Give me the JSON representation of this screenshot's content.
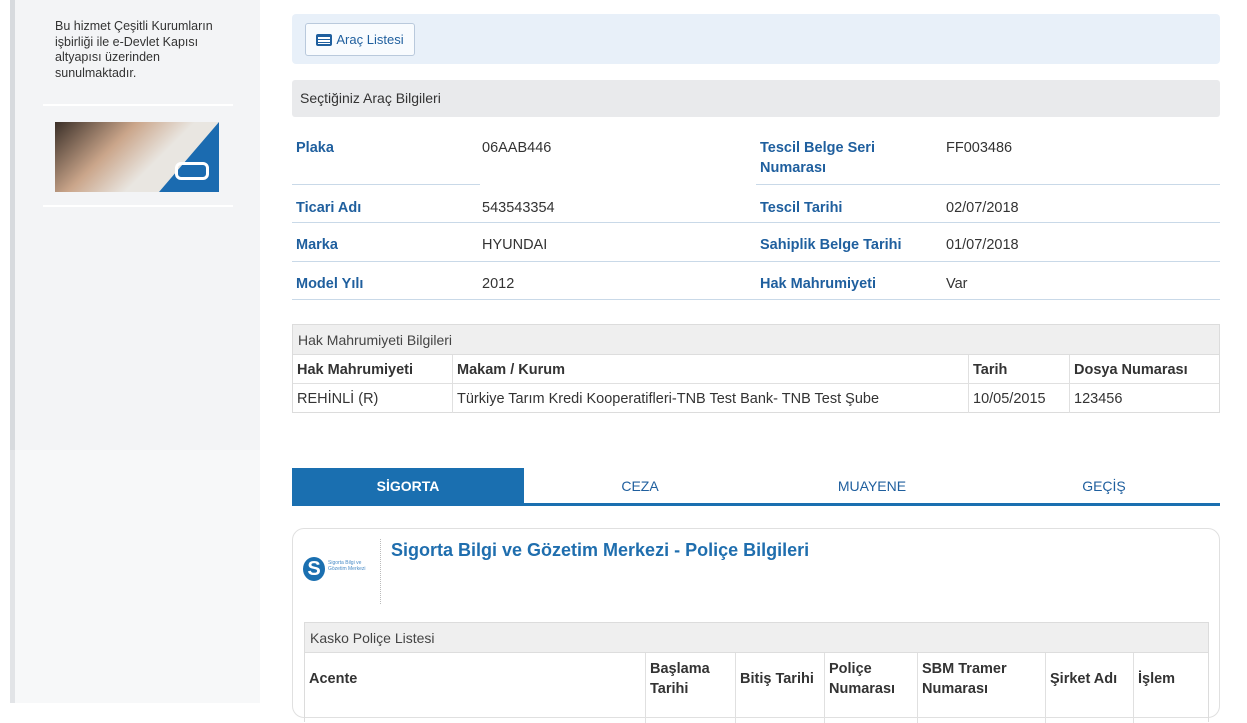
{
  "sidebar": {
    "info_text": "Bu hizmet Çeşitli Kurumların işbirliği ile e-Devlet Kapısı altyapısı üzerinden sunulmaktadır."
  },
  "toolbar": {
    "vehicle_list_label": "Araç Listesi",
    "icon": "list-icon"
  },
  "vehicle": {
    "section_title": "Seçtiğiniz Araç Bilgileri",
    "fields": [
      {
        "label": "Plaka",
        "value": "06AAB446"
      },
      {
        "label": "Tescil Belge Seri Numarası",
        "value": "FF003486"
      },
      {
        "label": "Ticari Adı",
        "value": "543543354"
      },
      {
        "label": "Tescil Tarihi",
        "value": "02/07/2018"
      },
      {
        "label": "Marka",
        "value": "HYUNDAI"
      },
      {
        "label": "Sahiplik Belge Tarihi",
        "value": "01/07/2018"
      },
      {
        "label": "Model Yılı",
        "value": "2012"
      },
      {
        "label": "Hak Mahrumiyeti",
        "value": "Var"
      }
    ]
  },
  "restriction": {
    "title": "Hak Mahrumiyeti Bilgileri",
    "columns": [
      "Hak Mahrumiyeti",
      "Makam / Kurum",
      "Tarih",
      "Dosya Numarası"
    ],
    "rows": [
      [
        "REHİNLİ (R)",
        "Türkiye Tarım Kredi Kooperatifleri-TNB Test Bank- TNB Test Şube",
        "10/05/2015",
        "123456"
      ]
    ]
  },
  "tabs": [
    {
      "label": "SİGORTA",
      "active": true
    },
    {
      "label": "CEZA"
    },
    {
      "label": "MUAYENE"
    },
    {
      "label": "GEÇİŞ"
    }
  ],
  "insurance": {
    "logo_text": "Sigorta Bilgi ve Gözetim Merkezi",
    "title": "Sigorta Bilgi ve Gözetim Merkezi - Poliçe Bilgileri",
    "list_title": "Kasko Poliçe Listesi",
    "columns": [
      "Acente",
      "Başlama Tarihi",
      "Bitiş Tarihi",
      "Poliçe Numarası",
      "SBM Tramer Numarası",
      "Şirket Adı",
      "İşlem"
    ]
  },
  "colors": {
    "accent": "#1a6fb0",
    "label": "#1f5f9e"
  }
}
